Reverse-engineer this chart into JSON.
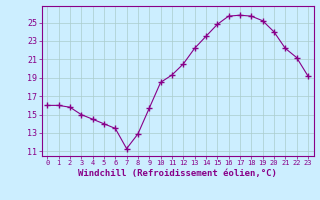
{
  "x": [
    0,
    1,
    2,
    3,
    4,
    5,
    6,
    7,
    8,
    9,
    10,
    11,
    12,
    13,
    14,
    15,
    16,
    17,
    18,
    19,
    20,
    21,
    22,
    23
  ],
  "y": [
    16.0,
    16.0,
    15.8,
    15.0,
    14.5,
    14.0,
    13.5,
    11.3,
    12.9,
    15.7,
    18.5,
    19.3,
    20.5,
    22.2,
    23.5,
    24.8,
    25.7,
    25.8,
    25.7,
    25.2,
    24.0,
    22.2,
    21.2,
    19.2
  ],
  "line_color": "#880088",
  "marker": "+",
  "marker_size": 4,
  "background_color": "#cceeff",
  "grid_color": "#aacccc",
  "xlabel": "Windchill (Refroidissement éolien,°C)",
  "ylabel": "",
  "title": "",
  "xlim": [
    -0.5,
    23.5
  ],
  "ylim": [
    10.5,
    26.8
  ],
  "yticks": [
    11,
    13,
    15,
    17,
    19,
    21,
    23,
    25
  ],
  "xticks": [
    0,
    1,
    2,
    3,
    4,
    5,
    6,
    7,
    8,
    9,
    10,
    11,
    12,
    13,
    14,
    15,
    16,
    17,
    18,
    19,
    20,
    21,
    22,
    23
  ],
  "xtick_labels": [
    "0",
    "1",
    "2",
    "3",
    "4",
    "5",
    "6",
    "7",
    "8",
    "9",
    "10",
    "11",
    "12",
    "13",
    "14",
    "15",
    "16",
    "17",
    "18",
    "19",
    "20",
    "21",
    "22",
    "23"
  ],
  "tick_color": "#880088",
  "label_color": "#880088",
  "spine_color": "#880088"
}
